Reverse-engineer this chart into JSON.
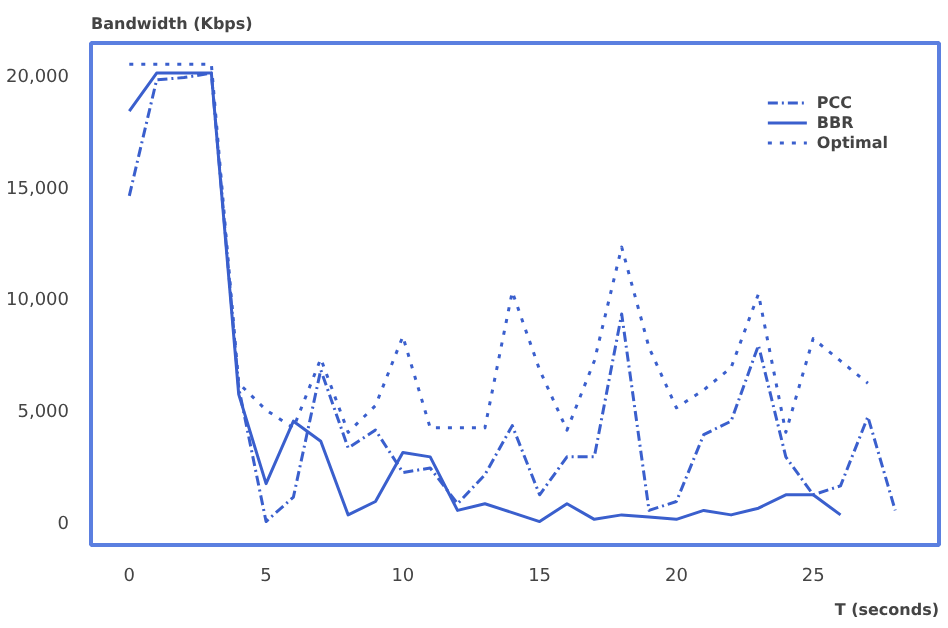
{
  "chart_data": {
    "type": "line",
    "xlabel": "T (seconds)",
    "ylabel": "Bandwidth (Kbps)",
    "xlim": [
      -1.4,
      29.6
    ],
    "ylim": [
      -1050,
      21450
    ],
    "xticks": [
      0,
      5,
      10,
      15,
      20,
      25
    ],
    "yticks": [
      {
        "value": 0,
        "label": "0"
      },
      {
        "value": 5000,
        "label": "5,000"
      },
      {
        "value": 10000,
        "label": "10,000"
      },
      {
        "value": 15000,
        "label": "15,000"
      },
      {
        "value": 20000,
        "label": "20,000"
      }
    ],
    "grid": false,
    "legend": "top right",
    "marker": "none",
    "series": [
      {
        "name": "PCC",
        "color": "#3a5fcd",
        "line_style": "dashdot",
        "x": [
          0,
          1,
          2,
          3,
          4,
          5,
          6,
          7,
          8,
          9,
          10,
          11,
          12,
          13,
          14,
          15,
          16,
          17,
          18,
          19,
          20,
          21,
          22,
          23,
          24,
          25,
          26,
          27,
          28
        ],
        "values": [
          14600,
          19800,
          19900,
          20100,
          6000,
          0,
          1100,
          6800,
          3300,
          4100,
          2200,
          2400,
          800,
          2100,
          4300,
          1200,
          2900,
          2900,
          9300,
          500,
          900,
          3900,
          4500,
          7900,
          2900,
          1200,
          1600,
          4700,
          500
        ]
      },
      {
        "name": "BBR",
        "color": "#3a5fcd",
        "line_style": "solid",
        "x": [
          0,
          1,
          2,
          3,
          4,
          5,
          6,
          7,
          8,
          9,
          10,
          11,
          12,
          13,
          14,
          15,
          16,
          17,
          18,
          19,
          20,
          21,
          22,
          23,
          24,
          25,
          26
        ],
        "values": [
          18400,
          20100,
          20100,
          20100,
          5700,
          1700,
          4500,
          3600,
          300,
          900,
          3100,
          2900,
          500,
          800,
          400,
          0,
          800,
          100,
          300,
          200,
          100,
          500,
          300,
          600,
          1200,
          1200,
          300
        ]
      },
      {
        "name": "Optimal",
        "color": "#3a5fcd",
        "line_style": "dotted",
        "x": [
          0,
          1,
          2,
          3,
          4,
          5,
          6,
          7,
          8,
          9,
          10,
          11,
          12,
          13,
          14,
          15,
          16,
          17,
          18,
          19,
          20,
          21,
          22,
          23,
          24,
          25,
          26,
          27
        ],
        "values": [
          20500,
          20500,
          20500,
          20500,
          6200,
          5000,
          4200,
          7300,
          4000,
          5200,
          8300,
          4200,
          4200,
          4200,
          10300,
          6800,
          4100,
          7200,
          12300,
          7800,
          5100,
          5900,
          6900,
          10200,
          4000,
          8200,
          7200,
          6200
        ]
      }
    ]
  }
}
